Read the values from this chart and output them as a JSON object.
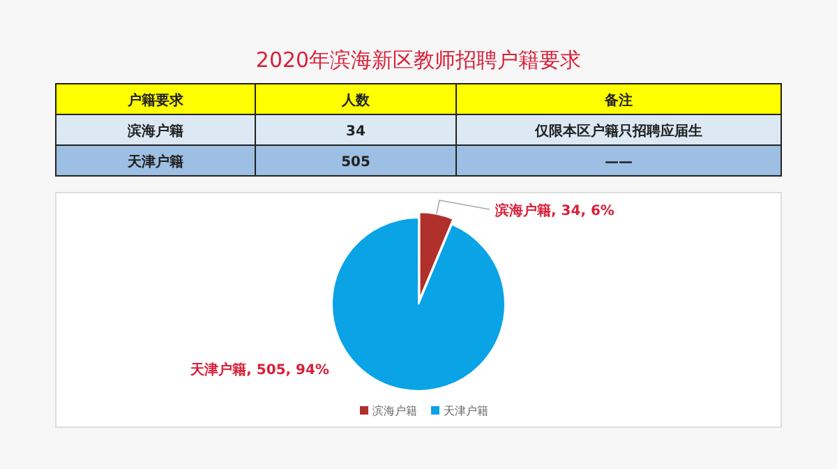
{
  "chart_data": {
    "type": "pie",
    "title": "2020年滨海新区教师招聘户籍要求",
    "categories": [
      "滨海户籍",
      "天津户籍"
    ],
    "values": [
      34,
      505
    ],
    "colors": [
      "#b0302c",
      "#0aa3e6"
    ],
    "value_labels": [
      "滨海户籍, 34, 6%",
      "天津户籍, 505, 94%"
    ],
    "legend": "bottom",
    "annotations": [
      "户籍要求",
      "人数",
      "备注",
      "滨海户籍",
      "34",
      "仅限本区户籍只招聘应届生",
      "天津户籍",
      "505",
      "——"
    ]
  }
}
